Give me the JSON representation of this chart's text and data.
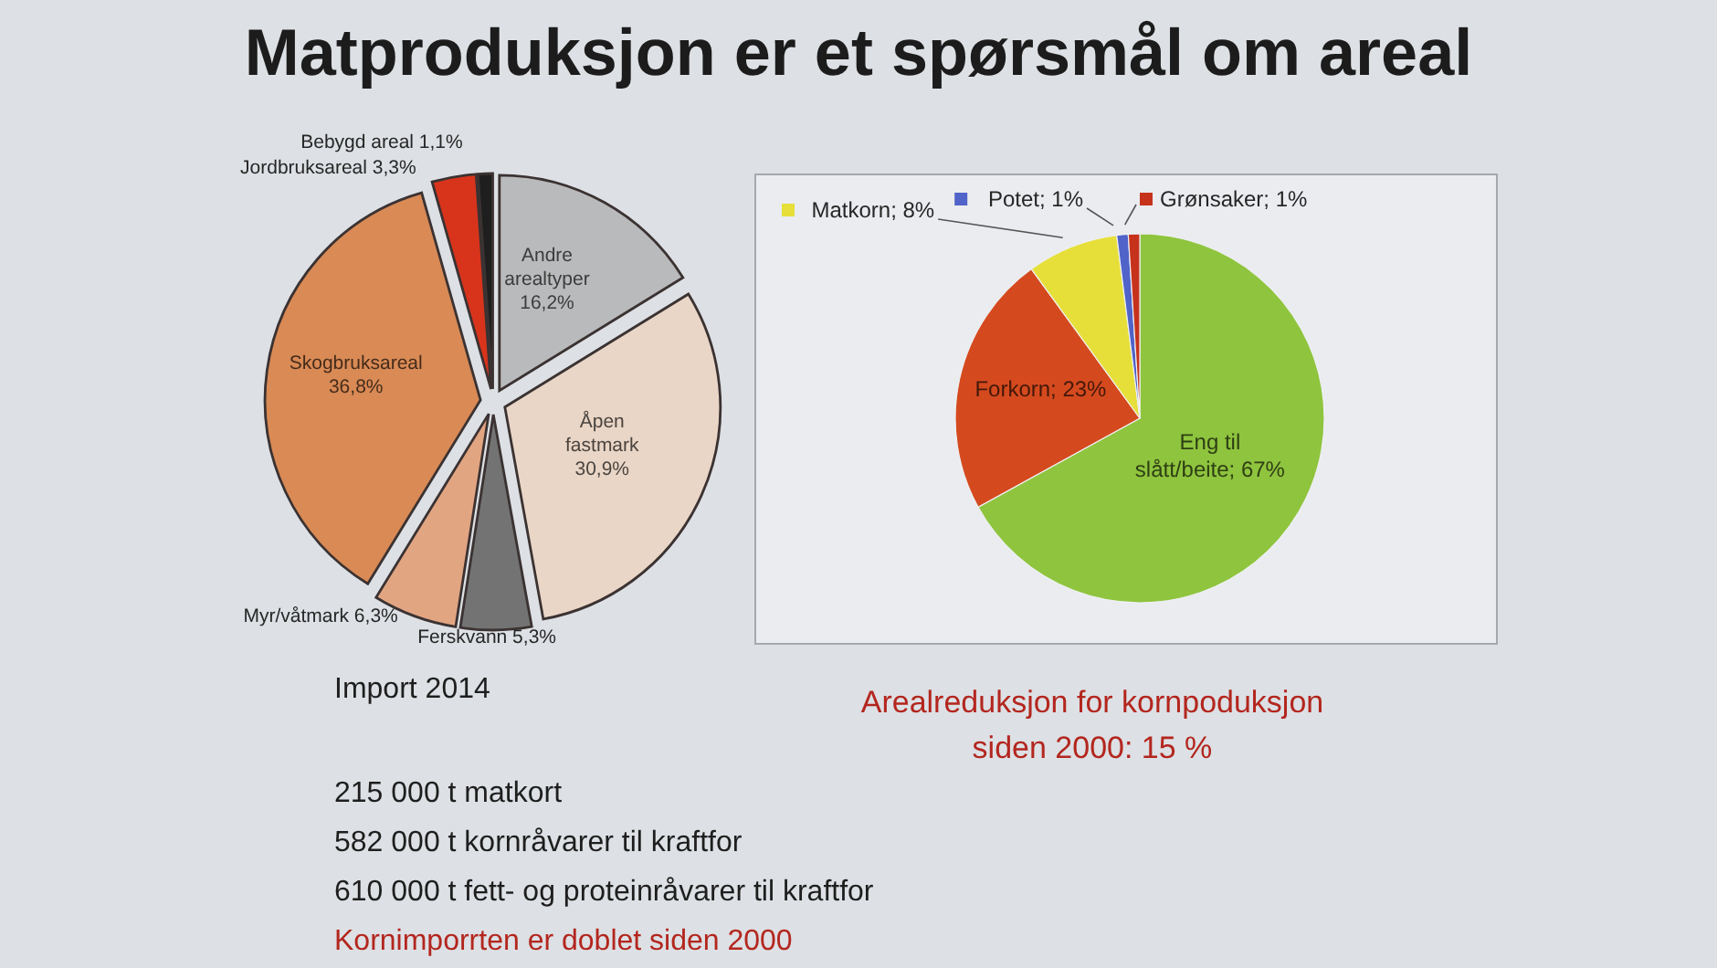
{
  "chart_data": [
    {
      "type": "pie",
      "title": "Matproduksjon er et spørsmål om areal",
      "categories": [
        "Andre arealtyper",
        "Åpen fastmark",
        "Ferskvann",
        "Myr/våtmark",
        "Skogbruksareal",
        "Jordbruksareal",
        "Bebygd areal"
      ],
      "values": [
        16.2,
        30.9,
        5.3,
        6.3,
        36.8,
        3.3,
        1.1
      ],
      "value_labels": [
        "16,2%",
        "30,9%",
        "5,3%",
        "6,3%",
        "36,8%",
        "3,3%",
        "1,1%"
      ],
      "colors": [
        "#b9babb",
        "#e9d6c6",
        "#737373",
        "#e2a582",
        "#d98a55",
        "#d8341c",
        "#1e1e1e"
      ],
      "annotations": [
        "Import 2014",
        "215 000 t matkort",
        "582 000 t kornråvarer til kraftfor",
        "610 000 t fett- og proteinråvarer til kraftfor",
        "Kornimporrten er doblet siden 2000"
      ]
    },
    {
      "type": "pie",
      "categories": [
        "Eng til slått/beite",
        "Forkorn",
        "Matkorn",
        "Potet",
        "Grønsaker"
      ],
      "values": [
        67,
        23,
        8,
        1,
        1
      ],
      "value_labels": [
        "67%",
        "23%",
        "8%",
        "1%",
        "1%"
      ],
      "colors": [
        "#8fc43e",
        "#d44a1e",
        "#e6df3a",
        "#4f63c9",
        "#c6321c"
      ],
      "legend": "top",
      "annotations": [
        "Arealreduksjon for kornpoduksjon siden 2000: 15 %"
      ]
    }
  ]
}
